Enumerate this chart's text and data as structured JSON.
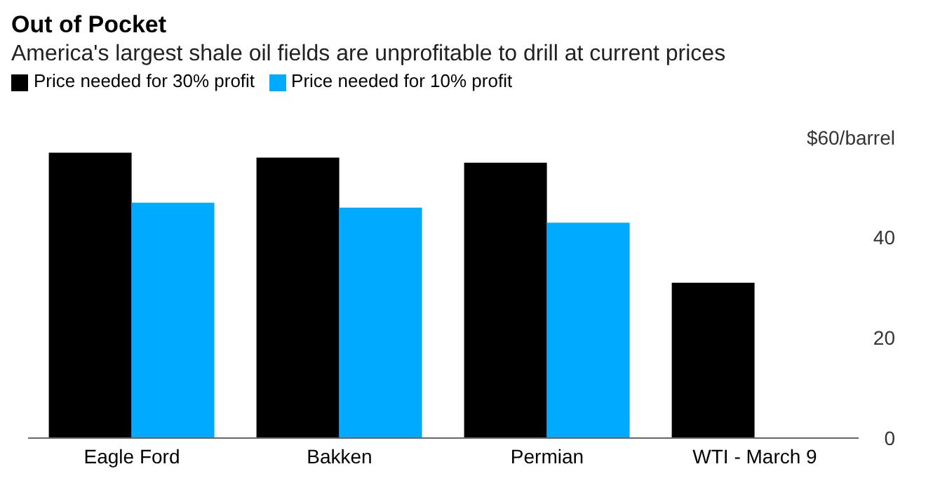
{
  "chart_data": {
    "type": "bar",
    "title": "Out of Pocket",
    "subtitle": "America's largest shale oil fields are unprofitable to drill at current prices",
    "categories": [
      "Eagle Ford",
      "Bakken",
      "Permian",
      "WTI - March 9"
    ],
    "series": [
      {
        "name": "Price needed for 30% profit",
        "color": "#000000",
        "values": [
          57,
          56,
          55,
          31
        ]
      },
      {
        "name": "Price needed for 10% profit",
        "color": "#00aaff",
        "values": [
          47,
          46,
          43,
          null
        ]
      }
    ],
    "ylim": [
      0,
      60
    ],
    "yticks": [
      0,
      20,
      40,
      {
        "value": 60,
        "label": "$60/barrel"
      }
    ],
    "grid": false,
    "legend": "top left"
  }
}
